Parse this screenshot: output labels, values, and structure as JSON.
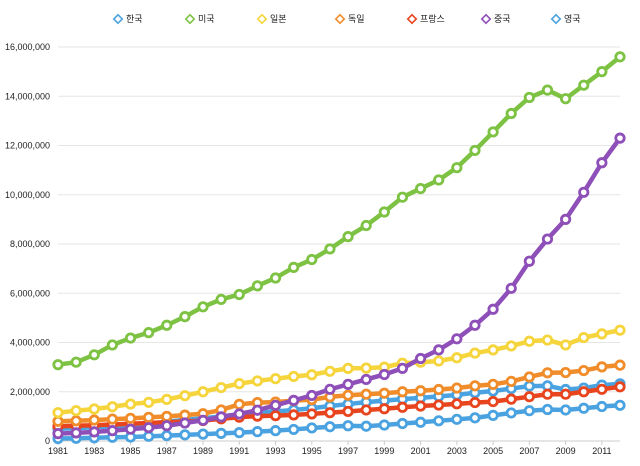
{
  "chart_data": {
    "type": "line",
    "title": "",
    "xlabel": "",
    "ylabel": "",
    "x": [
      1981,
      1982,
      1983,
      1984,
      1985,
      1986,
      1987,
      1988,
      1989,
      1990,
      1991,
      1992,
      1993,
      1994,
      1995,
      1996,
      1997,
      1998,
      1999,
      2000,
      2001,
      2002,
      2003,
      2004,
      2005,
      2006,
      2007,
      2008,
      2009,
      2010,
      2011,
      2012
    ],
    "x_tick_labels": [
      "1981",
      "1983",
      "1985",
      "1987",
      "1989",
      "1991",
      "1993",
      "1995",
      "1997",
      "1999",
      "2001",
      "2003",
      "2005",
      "2007",
      "2009",
      "2011"
    ],
    "y_tick_labels": [
      "0",
      "2,000,000",
      "4,000,000",
      "6,000,000",
      "8,000,000",
      "10,000,000",
      "12,000,000",
      "14,000,000",
      "16,000,000"
    ],
    "ylim": [
      0,
      16000000
    ],
    "grid": true,
    "legend_position": "top",
    "series": [
      {
        "name": "한국",
        "color": "#4aa3e0",
        "values": [
          100000,
          110000,
          130000,
          150000,
          160000,
          190000,
          220000,
          250000,
          280000,
          310000,
          340000,
          380000,
          420000,
          470000,
          530000,
          580000,
          620000,
          600000,
          650000,
          710000,
          760000,
          820000,
          880000,
          940000,
          1040000,
          1140000,
          1230000,
          1280000,
          1260000,
          1330000,
          1400000,
          1450000
        ]
      },
      {
        "name": "미국",
        "color": "#7dc242",
        "values": [
          3100000,
          3200000,
          3500000,
          3900000,
          4180000,
          4400000,
          4700000,
          5050000,
          5450000,
          5750000,
          5950000,
          6300000,
          6620000,
          7050000,
          7370000,
          7800000,
          8300000,
          8750000,
          9300000,
          9900000,
          10250000,
          10600000,
          11100000,
          11800000,
          12550000,
          13300000,
          13950000,
          14250000,
          13900000,
          14450000,
          15000000,
          15600000
        ]
      },
      {
        "name": "일본",
        "color": "#f5d53b",
        "values": [
          1150000,
          1230000,
          1300000,
          1390000,
          1500000,
          1570000,
          1690000,
          1840000,
          2000000,
          2170000,
          2330000,
          2440000,
          2530000,
          2620000,
          2690000,
          2830000,
          2950000,
          2960000,
          3000000,
          3160000,
          3200000,
          3250000,
          3380000,
          3570000,
          3700000,
          3860000,
          4050000,
          4100000,
          3900000,
          4200000,
          4350000,
          4500000
        ]
      },
      {
        "name": "독일",
        "color": "#f08c2a",
        "values": [
          800000,
          820000,
          850000,
          890000,
          920000,
          960000,
          1000000,
          1050000,
          1110000,
          1260000,
          1490000,
          1560000,
          1580000,
          1640000,
          1680000,
          1790000,
          1860000,
          1900000,
          1940000,
          2000000,
          2040000,
          2090000,
          2150000,
          2240000,
          2300000,
          2420000,
          2600000,
          2770000,
          2780000,
          2860000,
          3010000,
          3080000
        ]
      },
      {
        "name": "프랑스",
        "color": "#e8451e",
        "values": [
          600000,
          620000,
          640000,
          670000,
          700000,
          730000,
          760000,
          790000,
          830000,
          900000,
          970000,
          1010000,
          1030000,
          1060000,
          1100000,
          1150000,
          1200000,
          1260000,
          1310000,
          1370000,
          1420000,
          1460000,
          1510000,
          1560000,
          1600000,
          1700000,
          1800000,
          1900000,
          1900000,
          2000000,
          2100000,
          2200000
        ]
      },
      {
        "name": "중국",
        "color": "#8e4fb8",
        "values": [
          300000,
          330000,
          370000,
          420000,
          480000,
          540000,
          620000,
          730000,
          840000,
          980000,
          1100000,
          1250000,
          1450000,
          1650000,
          1850000,
          2100000,
          2300000,
          2500000,
          2700000,
          2950000,
          3350000,
          3700000,
          4150000,
          4700000,
          5350000,
          6200000,
          7300000,
          8200000,
          9000000,
          10100000,
          11300000,
          12300000
        ]
      },
      {
        "name": "영국",
        "color": "#4aa3e0",
        "values": [
          500000,
          520000,
          560000,
          600000,
          640000,
          700000,
          780000,
          860000,
          920000,
          1000000,
          1080000,
          1140000,
          1200000,
          1260000,
          1330000,
          1420000,
          1500000,
          1580000,
          1640000,
          1700000,
          1750000,
          1810000,
          1870000,
          1960000,
          2030000,
          2130000,
          2230000,
          2240000,
          2090000,
          2150000,
          2270000,
          2320000
        ]
      }
    ]
  }
}
